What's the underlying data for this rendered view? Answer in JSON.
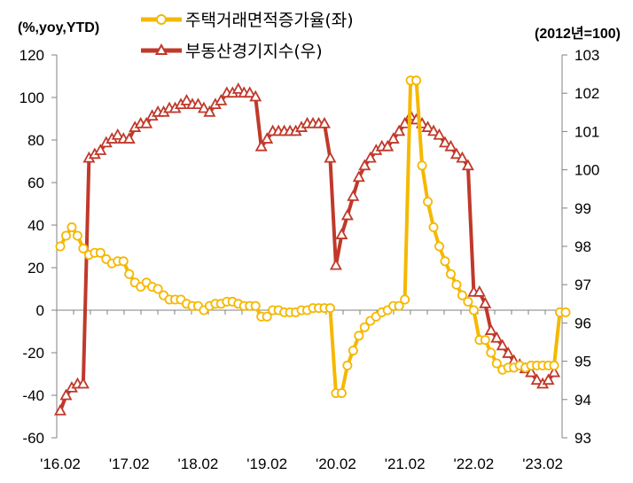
{
  "chart_data": {
    "type": "line",
    "left_unit": "(%,yoy,YTD)",
    "right_unit": "(2012년=100)",
    "left_axis": {
      "min": -60,
      "max": 120,
      "step": 20,
      "ticks": [
        "120",
        "100",
        "80",
        "60",
        "40",
        "20",
        "0",
        "-20",
        "-40",
        "-60"
      ]
    },
    "right_axis": {
      "min": 93,
      "max": 103,
      "step": 1,
      "ticks": [
        "103",
        "102",
        "101",
        "100",
        "99",
        "98",
        "97",
        "96",
        "95",
        "94",
        "93"
      ]
    },
    "x_ticks": [
      "'16.02",
      "'17.02",
      "'18.02",
      "'19.02",
      "'20.02",
      "'21.02",
      "'22.02",
      "'23.02"
    ],
    "grid": false,
    "legend_position": "top",
    "series": [
      {
        "name": "주택거래면적증가율(좌)",
        "axis": "left",
        "color": "#F5B800",
        "marker": "circle",
        "values": [
          30,
          35,
          39,
          35,
          29,
          26,
          27,
          27,
          24,
          22,
          23,
          23,
          17,
          13,
          11,
          13,
          11,
          10,
          7,
          5,
          5,
          5,
          3,
          2,
          2,
          0,
          2,
          3,
          3,
          4,
          4,
          3,
          2,
          2,
          2,
          -3,
          -3,
          0,
          0,
          -1,
          -1,
          -1,
          0,
          0,
          1,
          1,
          1,
          1,
          -39,
          -39,
          -26,
          -19,
          -12,
          -8,
          -5,
          -3,
          -1,
          0,
          2,
          2,
          5,
          108,
          108,
          68,
          51,
          39,
          30,
          23,
          17,
          12,
          7,
          4,
          0,
          -14,
          -14,
          -20,
          -25,
          -28,
          -27,
          -27,
          -26,
          -27,
          -26,
          -26,
          -26,
          -26,
          -26,
          -1,
          -1
        ]
      },
      {
        "name": "부동산경기지수(우)",
        "axis": "right",
        "color": "#C0392B",
        "marker": "triangle",
        "values": [
          93.7,
          94.1,
          94.3,
          94.4,
          94.4,
          100.3,
          100.4,
          100.5,
          100.7,
          100.8,
          100.9,
          100.8,
          100.8,
          101.1,
          101.2,
          101.2,
          101.4,
          101.5,
          101.5,
          101.6,
          101.6,
          101.7,
          101.8,
          101.7,
          101.7,
          101.6,
          101.5,
          101.7,
          101.8,
          102.0,
          102.0,
          102.1,
          102.0,
          102.0,
          101.9,
          100.6,
          100.8,
          101.0,
          101.0,
          101.0,
          101.0,
          101.0,
          101.1,
          101.2,
          101.2,
          101.2,
          101.2,
          100.3,
          97.5,
          98.3,
          98.8,
          99.3,
          99.8,
          100.1,
          100.3,
          100.5,
          100.6,
          100.6,
          100.8,
          101.0,
          101.2,
          101.4,
          101.3,
          101.2,
          101.1,
          101.0,
          100.9,
          100.7,
          100.6,
          100.4,
          100.3,
          100.1,
          96.8,
          96.8,
          96.5,
          95.8,
          95.6,
          95.4,
          95.2,
          95.0,
          94.9,
          94.8,
          94.7,
          94.5,
          94.4,
          94.5,
          94.7
        ]
      }
    ]
  }
}
